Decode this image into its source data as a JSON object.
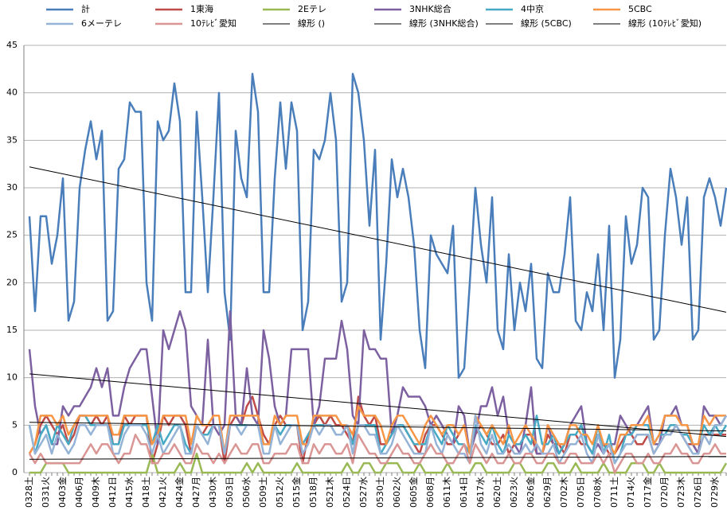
{
  "chart_data": {
    "type": "line",
    "categories": [
      "0328土",
      null,
      null,
      "0331火",
      null,
      null,
      "0403金",
      null,
      null,
      "0406月",
      null,
      null,
      "0409木",
      null,
      null,
      "0412日",
      null,
      null,
      "0415水",
      null,
      null,
      "0418土",
      null,
      null,
      "0421火",
      null,
      null,
      "0424金",
      null,
      null,
      "0427月",
      null,
      null,
      "0430木",
      null,
      null,
      "0503日",
      null,
      null,
      "0506水",
      null,
      null,
      "0509土",
      null,
      null,
      "0512火",
      null,
      null,
      "0515金",
      null,
      null,
      "0518月",
      null,
      null,
      "0521木",
      null,
      null,
      "0524日",
      null,
      null,
      "0527水",
      null,
      null,
      "0530土",
      null,
      null,
      "0602火",
      null,
      null,
      "0605金",
      null,
      null,
      "0608月",
      null,
      null,
      "0611木",
      null,
      null,
      "0614日",
      null,
      null,
      "0617水",
      null,
      null,
      "0620土",
      null,
      null,
      "0623火",
      null,
      null,
      "0626金",
      null,
      null,
      "0629月",
      null,
      null,
      "0702木",
      null,
      null,
      "0705日",
      null,
      null,
      "0708水",
      null,
      null,
      "0711土",
      null,
      null,
      "0714火",
      null,
      null,
      "0717金",
      null,
      null,
      "0720月",
      null,
      null,
      "0723木",
      null,
      null,
      "0726日",
      null,
      null,
      "0729水",
      null,
      null
    ],
    "series": [
      {
        "name": "計",
        "color": "#4a7ebb",
        "values": [
          27,
          17,
          27,
          27,
          22,
          25,
          31,
          16,
          18,
          30,
          34,
          37,
          33,
          36,
          16,
          17,
          32,
          33,
          39,
          38,
          38,
          20,
          16,
          37,
          35,
          36,
          41,
          37,
          19,
          19,
          38,
          29,
          19,
          29,
          40,
          19,
          14,
          36,
          31,
          29,
          42,
          38,
          19,
          19,
          31,
          39,
          32,
          39,
          36,
          15,
          18,
          34,
          33,
          35,
          40,
          35,
          18,
          20,
          42,
          40,
          35,
          26,
          34,
          14,
          22,
          33,
          29,
          32,
          29,
          24,
          15,
          11,
          25,
          23,
          22,
          21,
          26,
          10,
          11,
          20,
          30,
          24,
          20,
          29,
          15,
          13,
          23,
          15,
          20,
          17,
          22,
          12,
          11,
          21,
          19,
          19,
          23,
          29,
          16,
          15,
          19,
          17,
          23,
          15,
          26,
          10,
          14,
          27,
          22,
          24,
          30,
          29,
          14,
          15,
          25,
          32,
          29,
          24,
          29,
          14,
          15,
          29,
          31,
          29,
          26,
          30
        ]
      },
      {
        "name": "1東海",
        "color": "#be4b48",
        "values": [
          2,
          3,
          5,
          6,
          5,
          4,
          5,
          3,
          4,
          6,
          6,
          5,
          6,
          5,
          6,
          3,
          3,
          6,
          5,
          6,
          6,
          6,
          1,
          3,
          6,
          5,
          6,
          6,
          5,
          2,
          5,
          4,
          5,
          5,
          5,
          1,
          5,
          6,
          5,
          7,
          8,
          6,
          4,
          3,
          5,
          6,
          5,
          5,
          5,
          1,
          4,
          5,
          6,
          5,
          6,
          5,
          5,
          4,
          3,
          8,
          6,
          5,
          6,
          3,
          3,
          4,
          5,
          5,
          4,
          3,
          2,
          4,
          5,
          5,
          4,
          3,
          3,
          4,
          5,
          2,
          4,
          5,
          4,
          3,
          3,
          4,
          2,
          3,
          3,
          4,
          4,
          2,
          2,
          4,
          3,
          3,
          2,
          4,
          4,
          3,
          3,
          2,
          4,
          3,
          2,
          2,
          3,
          4,
          4,
          3,
          3,
          4,
          2,
          3,
          4,
          4,
          5,
          4,
          3,
          3,
          2,
          4,
          4,
          4,
          4,
          4
        ]
      },
      {
        "name": "2Eテレ",
        "color": "#98b954",
        "values": [
          0,
          0,
          0,
          1,
          1,
          1,
          1,
          0,
          0,
          0,
          0,
          0,
          0,
          0,
          0,
          0,
          0,
          0,
          0,
          0,
          0,
          0,
          2,
          0,
          0,
          0,
          0,
          1,
          0,
          0,
          2,
          0,
          0,
          0,
          0,
          0,
          0,
          0,
          0,
          1,
          0,
          1,
          0,
          0,
          0,
          0,
          0,
          0,
          1,
          0,
          0,
          0,
          0,
          0,
          0,
          0,
          0,
          1,
          0,
          0,
          1,
          1,
          0,
          0,
          1,
          1,
          1,
          0,
          0,
          0,
          1,
          0,
          0,
          0,
          0,
          1,
          0,
          0,
          0,
          0,
          1,
          1,
          0,
          0,
          0,
          0,
          0,
          1,
          1,
          0,
          0,
          0,
          0,
          1,
          1,
          0,
          0,
          0,
          1,
          0,
          0,
          0,
          0,
          1,
          0,
          0,
          0,
          0,
          1,
          1,
          1,
          0,
          0,
          1,
          0,
          0,
          0,
          0,
          0,
          0,
          0,
          0,
          0,
          0,
          0,
          1
        ]
      },
      {
        "name": "3NHK総合",
        "color": "#7d60a0",
        "values": [
          13,
          7,
          4,
          5,
          3,
          3,
          7,
          6,
          7,
          7,
          8,
          9,
          11,
          9,
          11,
          6,
          6,
          9,
          11,
          12,
          13,
          13,
          8,
          3,
          15,
          13,
          15,
          17,
          15,
          7,
          6,
          5,
          14,
          5,
          4,
          5,
          17,
          6,
          5,
          11,
          6,
          5,
          15,
          12,
          7,
          5,
          6,
          13,
          13,
          13,
          13,
          5,
          7,
          12,
          12,
          12,
          16,
          13,
          6,
          5,
          15,
          13,
          13,
          12,
          12,
          4,
          6,
          9,
          8,
          8,
          8,
          7,
          5,
          6,
          5,
          4,
          3,
          7,
          6,
          2,
          4,
          7,
          7,
          9,
          6,
          8,
          4,
          3,
          2,
          5,
          9,
          2,
          2,
          5,
          3,
          2,
          3,
          5,
          6,
          7,
          3,
          2,
          3,
          2,
          3,
          3,
          6,
          5,
          4,
          5,
          6,
          7,
          3,
          3,
          6,
          6,
          7,
          5,
          5,
          3,
          2,
          7,
          6,
          6,
          5,
          6
        ]
      },
      {
        "name": "4中京",
        "color": "#46aac5",
        "values": [
          5,
          2,
          4,
          5,
          3,
          5,
          4,
          3,
          5,
          6,
          6,
          5,
          5,
          5,
          5,
          3,
          3,
          5,
          5,
          5,
          5,
          5,
          3,
          5,
          3,
          4,
          5,
          5,
          3,
          2,
          5,
          4,
          4,
          5,
          5,
          2,
          5,
          5,
          5,
          5,
          5,
          5,
          3,
          3,
          5,
          4,
          5,
          5,
          5,
          3,
          4,
          5,
          5,
          5,
          5,
          4,
          4,
          5,
          3,
          5,
          5,
          5,
          5,
          2,
          3,
          4,
          5,
          5,
          4,
          3,
          3,
          3,
          5,
          4,
          3,
          5,
          4,
          3,
          3,
          2,
          5,
          4,
          3,
          5,
          3,
          2,
          4,
          3,
          3,
          4,
          3,
          6,
          3,
          3,
          4,
          2,
          3,
          4,
          4,
          5,
          3,
          2,
          5,
          2,
          4,
          1,
          2,
          4,
          4,
          5,
          5,
          5,
          3,
          4,
          4,
          5,
          5,
          4,
          4,
          3,
          3,
          5,
          4,
          5,
          4,
          5
        ]
      },
      {
        "name": "5CBC",
        "color": "#f79646",
        "values": [
          2,
          3,
          6,
          6,
          6,
          5,
          6,
          4,
          5,
          6,
          6,
          6,
          6,
          6,
          6,
          4,
          4,
          6,
          6,
          6,
          6,
          6,
          3,
          4,
          6,
          6,
          6,
          6,
          6,
          3,
          6,
          5,
          5,
          6,
          6,
          2,
          6,
          6,
          6,
          6,
          6,
          6,
          3,
          3,
          6,
          5,
          6,
          6,
          6,
          3,
          3,
          6,
          6,
          6,
          6,
          6,
          5,
          5,
          4,
          7,
          6,
          6,
          6,
          5,
          3,
          5,
          6,
          6,
          5,
          4,
          3,
          5,
          6,
          5,
          4,
          5,
          5,
          4,
          5,
          2,
          6,
          5,
          4,
          5,
          4,
          3,
          5,
          3,
          4,
          5,
          4,
          3,
          2,
          5,
          4,
          3,
          3,
          5,
          5,
          4,
          4,
          3,
          5,
          3,
          3,
          2,
          4,
          4,
          5,
          5,
          5,
          6,
          3,
          4,
          6,
          6,
          6,
          5,
          5,
          3,
          3,
          6,
          5,
          6,
          6,
          6
        ]
      },
      {
        "name": "6メーテレ",
        "color": "#95b3d7",
        "values": [
          5,
          2,
          3,
          4,
          2,
          4,
          3,
          2,
          3,
          5,
          5,
          4,
          5,
          5,
          5,
          2,
          2,
          4,
          5,
          5,
          5,
          4,
          2,
          4,
          2,
          3,
          4,
          5,
          2,
          2,
          5,
          4,
          3,
          5,
          5,
          2,
          5,
          5,
          4,
          5,
          5,
          5,
          2,
          2,
          5,
          3,
          4,
          5,
          5,
          2,
          3,
          5,
          4,
          5,
          5,
          4,
          4,
          5,
          2,
          5,
          5,
          4,
          4,
          2,
          2,
          3,
          5,
          4,
          3,
          2,
          2,
          2,
          5,
          3,
          2,
          4,
          3,
          2,
          2,
          1,
          6,
          3,
          2,
          4,
          2,
          2,
          3,
          2,
          2,
          3,
          2,
          3,
          2,
          2,
          3,
          1,
          2,
          3,
          3,
          4,
          2,
          1,
          4,
          2,
          3,
          1,
          2,
          3,
          3,
          4,
          4,
          4,
          2,
          3,
          4,
          4,
          5,
          4,
          3,
          2,
          2,
          4,
          3,
          5,
          5,
          6
        ]
      },
      {
        "name": "10ﾃﾚﾋﾞ愛知",
        "color": "#d99694",
        "values": [
          2,
          1,
          2,
          1,
          1,
          1,
          1,
          1,
          1,
          1,
          2,
          3,
          2,
          3,
          3,
          2,
          1,
          2,
          2,
          4,
          3,
          3,
          1,
          1,
          2,
          2,
          3,
          2,
          1,
          1,
          3,
          2,
          2,
          1,
          2,
          1,
          2,
          3,
          2,
          2,
          3,
          3,
          1,
          1,
          2,
          2,
          2,
          3,
          3,
          1,
          1,
          3,
          2,
          3,
          3,
          2,
          2,
          3,
          1,
          4,
          3,
          2,
          2,
          1,
          1,
          2,
          3,
          2,
          2,
          1,
          1,
          2,
          3,
          2,
          2,
          1,
          1,
          2,
          3,
          1,
          3,
          2,
          1,
          2,
          1,
          1,
          2,
          1,
          1,
          2,
          2,
          1,
          1,
          2,
          2,
          1,
          1,
          2,
          2,
          1,
          1,
          1,
          2,
          1,
          2,
          0,
          1,
          2,
          2,
          1,
          1,
          2,
          1,
          1,
          2,
          2,
          3,
          2,
          2,
          1,
          1,
          2,
          2,
          3,
          2,
          2
        ]
      }
    ],
    "trendlines": [
      {
        "name": "線形 ()",
        "color": "#000000",
        "values": [
          32.2,
          16.9
        ]
      },
      {
        "name": "線形 (3NHK総合)",
        "color": "#000000",
        "values": [
          10.4,
          3.8
        ]
      },
      {
        "name": "線形 (5CBC)",
        "color": "#000000",
        "values": [
          5.3,
          4.4
        ]
      },
      {
        "name": "線形 (10ﾃﾚﾋﾞ愛知)",
        "color": "#000000",
        "values": [
          1.4,
          1.7
        ]
      }
    ],
    "ylim": [
      0,
      45
    ],
    "yticks": [
      0,
      5,
      10,
      15,
      20,
      25,
      30,
      35,
      40,
      45
    ],
    "grid": true
  }
}
